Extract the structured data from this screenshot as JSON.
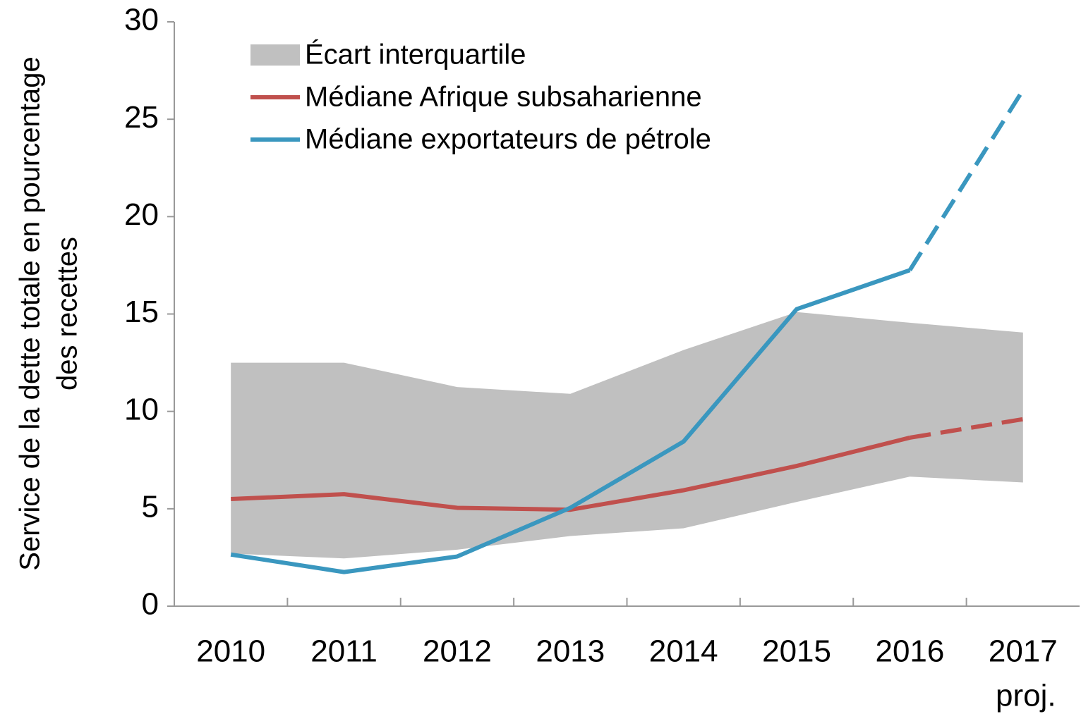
{
  "chart_data": {
    "type": "line",
    "ylabel": [
      "Service de la dette totale en pourcentage",
      "des recettes"
    ],
    "categories": [
      "2010",
      "2011",
      "2012",
      "2013",
      "2014",
      "2015",
      "2016",
      "2017"
    ],
    "x_annotation": "proj.",
    "projection_start": "2016",
    "ylim": [
      0,
      30
    ],
    "yticks": [
      0,
      5,
      10,
      15,
      20,
      25,
      30
    ],
    "band": {
      "name": "Écart interquartile",
      "color": "#c0c0c0",
      "upper": [
        12.5,
        12.5,
        11.25,
        10.9,
        13.15,
        15.1,
        14.55,
        14.05
      ],
      "lower": [
        2.7,
        2.45,
        2.9,
        3.6,
        4.0,
        5.35,
        6.65,
        6.35
      ]
    },
    "series": [
      {
        "name": "Médiane Afrique subsaharienne",
        "color": "#c0504d",
        "values": [
          5.5,
          5.75,
          5.05,
          4.95,
          5.95,
          7.2,
          8.65,
          9.6
        ]
      },
      {
        "name": "Médiane exportateurs de pétrole",
        "color": "#3a97bf",
        "values": [
          2.65,
          1.75,
          2.55,
          5.05,
          8.45,
          15.25,
          17.25,
          26.5
        ]
      }
    ],
    "legend": "upper left"
  }
}
